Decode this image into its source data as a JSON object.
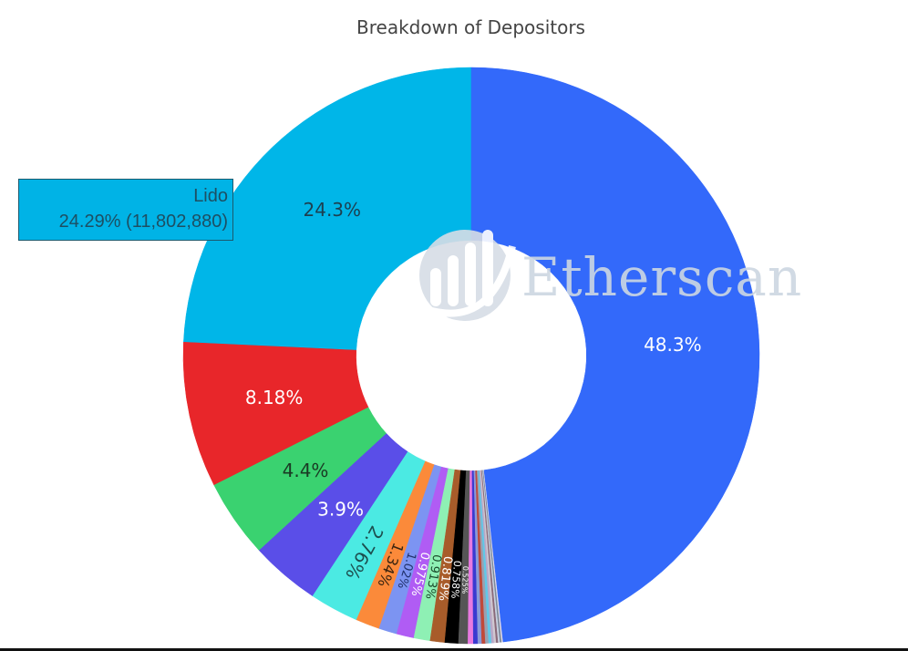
{
  "chart_data": {
    "type": "pie",
    "hole": 0.4,
    "title": "Breakdown of Depositors",
    "direction": "counterclockwise",
    "slices": [
      {
        "label": "Lido",
        "percent": 24.29,
        "text": "24.3%",
        "color": "#00b6e8",
        "text_color": "#1d3f4f",
        "value": 11802880
      },
      {
        "label": "",
        "percent": 8.18,
        "text": "8.18%",
        "color": "#e8262a",
        "text_color": "#ffffff"
      },
      {
        "label": "",
        "percent": 4.4,
        "text": "4.4%",
        "color": "#3ad270",
        "text_color": "#1a3a24"
      },
      {
        "label": "",
        "percent": 3.9,
        "text": "3.9%",
        "color": "#5a4ee8",
        "text_color": "#ffffff"
      },
      {
        "label": "",
        "percent": 2.76,
        "text": "2.76%",
        "color": "#4beae3",
        "text_color": "#1d4f4f"
      },
      {
        "label": "",
        "percent": 1.34,
        "text": "1.34%",
        "color": "#fb8a3a",
        "text_color": "#3a2410"
      },
      {
        "label": "",
        "percent": 1.02,
        "text": "1.02%",
        "color": "#7c94f2",
        "text_color": "#20306a"
      },
      {
        "label": "",
        "percent": 0.975,
        "text": "0.975%",
        "color": "#b05cf4",
        "text_color": "#ffffff"
      },
      {
        "label": "",
        "percent": 0.913,
        "text": "0.913%",
        "color": "#8ef0b4",
        "text_color": "#1a4a2a"
      },
      {
        "label": "",
        "percent": 0.819,
        "text": "0.819%",
        "color": "#a85c2a",
        "text_color": "#ffffff"
      },
      {
        "label": "",
        "percent": 0.758,
        "text": "0.758%",
        "color": "#000000",
        "text_color": "#ffffff"
      },
      {
        "label": "",
        "percent": 0.525,
        "text": "0.525%",
        "color": "#555555",
        "text_color": "#ffffff"
      },
      {
        "label": "",
        "percent": 0.3,
        "text": "",
        "color": "#e87ae0",
        "text_color": "#ffffff"
      },
      {
        "label": "",
        "percent": 0.25,
        "text": "",
        "color": "#3a3ad0",
        "text_color": "#ffffff"
      },
      {
        "label": "",
        "percent": 0.22,
        "text": "",
        "color": "#8a9ad8",
        "text_color": "#ffffff"
      },
      {
        "label": "",
        "percent": 0.2,
        "text": "",
        "color": "#c04a3a",
        "text_color": "#ffffff"
      },
      {
        "label": "",
        "percent": 0.18,
        "text": "",
        "color": "#9aa0b0",
        "text_color": "#ffffff"
      },
      {
        "label": "",
        "percent": 0.16,
        "text": "",
        "color": "#60c8e8",
        "text_color": "#ffffff"
      },
      {
        "label": "",
        "percent": 0.14,
        "text": "",
        "color": "#b8a8c8",
        "text_color": "#ffffff"
      },
      {
        "label": "",
        "percent": 0.12,
        "text": "",
        "color": "#d0c8d0",
        "text_color": "#ffffff"
      },
      {
        "label": "",
        "percent": 0.11,
        "text": "",
        "color": "#8a6a7a",
        "text_color": "#ffffff"
      },
      {
        "label": "",
        "percent": 0.1,
        "text": "",
        "color": "#c8d0e0",
        "text_color": "#ffffff"
      },
      {
        "label": "",
        "percent": 0.09,
        "text": "",
        "color": "#7a8898",
        "text_color": "#ffffff"
      },
      {
        "label": "",
        "percent": 0.08,
        "text": "",
        "color": "#e0d8e8",
        "text_color": "#ffffff"
      },
      {
        "label": "",
        "percent": 48.3,
        "text": "48.3%",
        "color": "#3369fa",
        "text_color": "#ffffff"
      }
    ],
    "legend": "none"
  },
  "tooltip": {
    "label": "Lido",
    "detail": "24.29% (11,802,880)"
  },
  "watermark": {
    "text": "Etherscan"
  }
}
